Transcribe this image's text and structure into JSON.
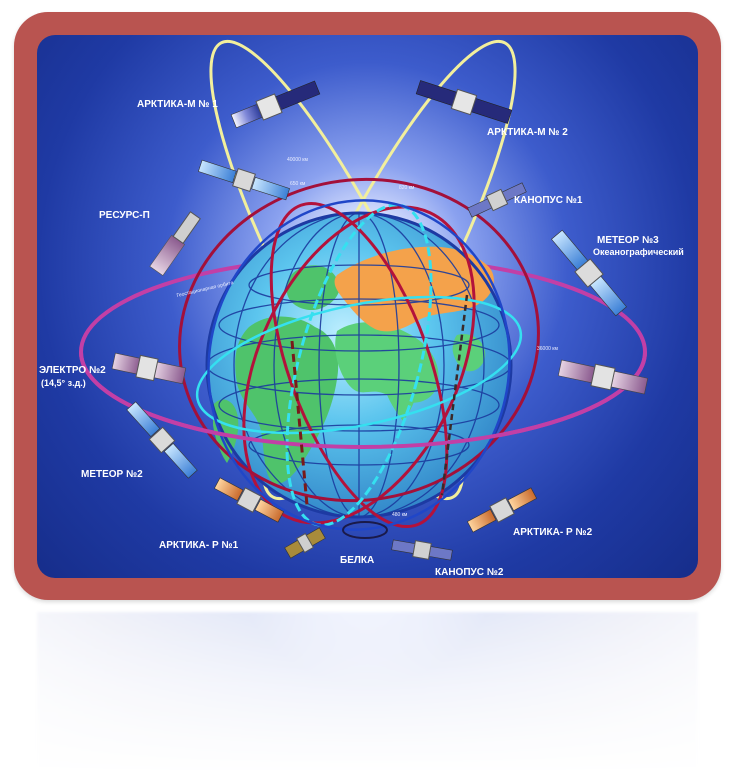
{
  "satellites": {
    "arktika_m1": "АРКТИКА-М № 1",
    "arktika_m2": "АРКТИКА-М № 2",
    "resurs_p": "РЕСУРС-П",
    "kanopus_1": "КАНОПУС №1",
    "meteor_3_line1": "МЕТЕОР №3",
    "meteor_3_line2": "Океанографический",
    "elektro_2_line1": "ЭЛЕКТРО №2",
    "elektro_2_line2": "(14,5° з.д.)",
    "meteor_2": "МЕТЕОР №2",
    "arktika_r1": "АРКТИКА- Р №1",
    "arktika_r2": "АРКТИКА- Р №2",
    "belka": "БЕЛКА",
    "kanopus_2": "КАНОПУС №2"
  },
  "orbit_annotations": {
    "alt_40000": "40000 км",
    "alt_650": "650 км",
    "alt_820": "820 км",
    "alt_36000": "36000 км",
    "alt_480": "480 км",
    "geostationary_orbit": "Геостационарная орбита"
  },
  "colors": {
    "frame": "#b95450",
    "background_center": "#ffffff",
    "background_edge": "#162d8a",
    "ocean": "#3fa8dd",
    "land_green": "#4fc36b",
    "land_orange": "#f4a24b",
    "orbit_yellow": "#f2ef9c",
    "orbit_red": "#b3123b",
    "orbit_magenta": "#c23fa6",
    "orbit_cyan": "#35e0f0",
    "orbit_blue": "#2a46c8"
  }
}
